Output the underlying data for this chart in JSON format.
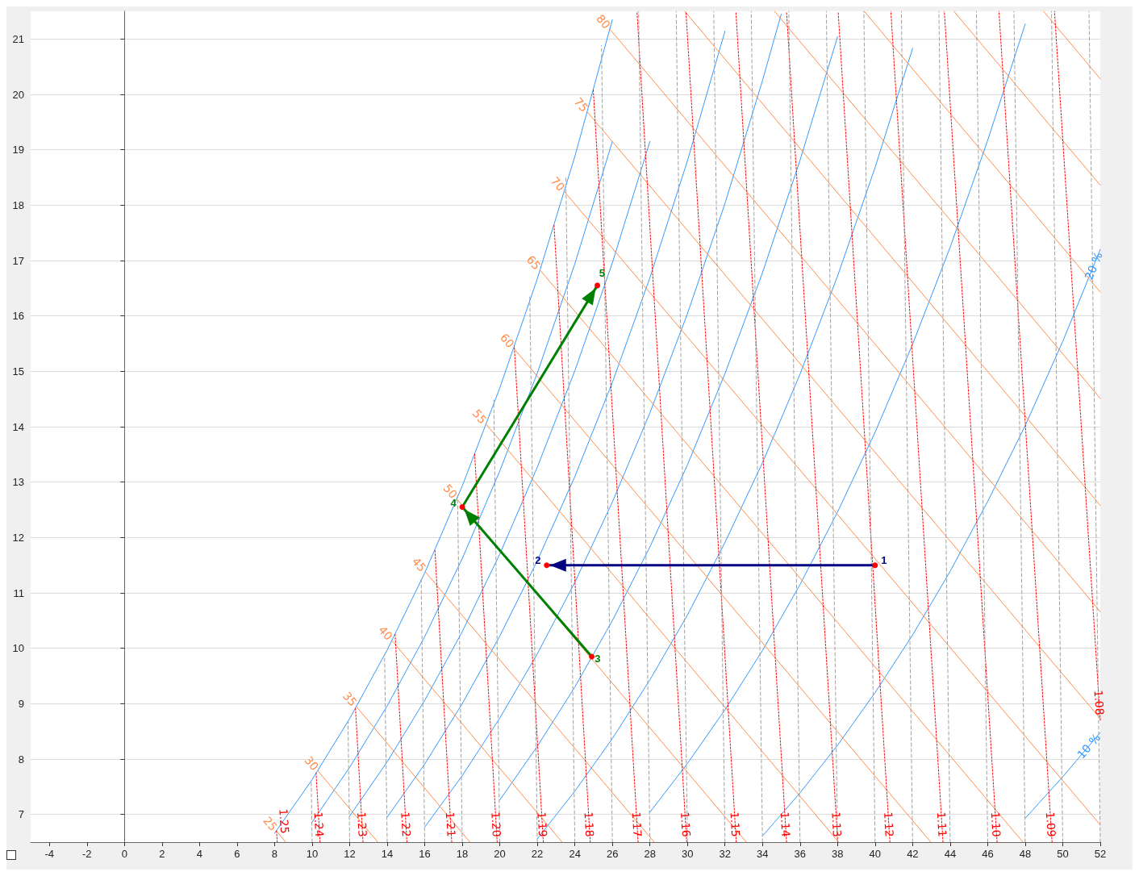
{
  "chart_data": {
    "type": "line",
    "xlim": [
      -5,
      52
    ],
    "ylim": [
      6.5,
      21.5
    ],
    "xticks": [
      -4,
      -2,
      0,
      2,
      4,
      6,
      8,
      10,
      12,
      14,
      16,
      18,
      20,
      22,
      24,
      26,
      28,
      30,
      32,
      34,
      36,
      38,
      40,
      42,
      44,
      46,
      48,
      50,
      52
    ],
    "yticks": [
      7,
      8,
      9,
      10,
      11,
      12,
      13,
      14,
      15,
      16,
      17,
      18,
      19,
      20,
      21
    ],
    "grid": "y",
    "marker": "none",
    "line_style": "solid",
    "series": [
      {
        "color": "#3399ff",
        "x": [
          26,
          24,
          22,
          20,
          18,
          16,
          14,
          12,
          10,
          8
        ],
        "values": [
          21.35,
          18.88,
          16.67,
          14.7,
          12.93,
          11.36,
          9.97,
          8.73,
          7.63,
          6.66
        ]
      },
      {
        "color": "#3399ff",
        "x": [
          26,
          24,
          22,
          20,
          18,
          16,
          14,
          12,
          10
        ],
        "values": [
          19.15,
          16.94,
          14.97,
          13.2,
          11.62,
          10.21,
          8.96,
          7.85,
          6.86
        ]
      },
      {
        "color": "#3399ff",
        "x": [
          28,
          26,
          24,
          22,
          20,
          18,
          16,
          14,
          12
        ],
        "values": [
          19.15,
          16.96,
          15.01,
          13.27,
          11.7,
          10.3,
          9.06,
          7.95,
          6.97
        ]
      },
      {
        "color": "#3399ff",
        "x": [
          32,
          30,
          28,
          26,
          24,
          22,
          20,
          18,
          16,
          14
        ],
        "values": [
          21.14,
          18.8,
          16.69,
          14.8,
          13.1,
          11.58,
          10.22,
          9.0,
          7.91,
          6.95
        ]
      },
      {
        "color": "#3399ff",
        "x": [
          35,
          34,
          32,
          30,
          28,
          26,
          24,
          22,
          20,
          18,
          16
        ],
        "values": [
          21.45,
          20.25,
          18.03,
          16.04,
          14.25,
          12.64,
          11.19,
          9.9,
          8.74,
          7.7,
          6.77
        ]
      },
      {
        "color": "#3399ff",
        "x": [
          38,
          36,
          34,
          32,
          30,
          28,
          26,
          24,
          22,
          20
        ],
        "values": [
          21.04,
          18.81,
          16.78,
          14.96,
          13.31,
          11.83,
          10.5,
          9.3,
          8.23,
          7.26
        ]
      },
      {
        "color": "#3399ff",
        "x": [
          42,
          40,
          38,
          36,
          34,
          32,
          30,
          28,
          26,
          24,
          22
        ],
        "values": [
          20.83,
          18.68,
          16.72,
          14.95,
          13.35,
          11.91,
          10.6,
          9.43,
          8.37,
          7.42,
          6.56
        ]
      },
      {
        "color": "#3399ff",
        "x": [
          48,
          46,
          44,
          42,
          40,
          38,
          36,
          34,
          32,
          30,
          28
        ],
        "values": [
          21.27,
          19.17,
          17.24,
          15.49,
          13.9,
          12.46,
          11.15,
          9.96,
          8.89,
          7.92,
          7.04
        ]
      },
      {
        "name": "20 %",
        "color": "#3399ff",
        "x": [
          52,
          50,
          48,
          46,
          44,
          42,
          40,
          38,
          36,
          34
        ],
        "values": [
          17.2,
          15.54,
          14.02,
          12.65,
          11.39,
          10.24,
          9.2,
          8.25,
          7.39,
          6.61
        ]
      },
      {
        "name": "10 %",
        "color": "#3399ff",
        "x": [
          52,
          50,
          48
        ],
        "values": [
          8.48,
          7.68,
          6.93
        ]
      },
      {
        "name": "25",
        "color": "#ff8c4a",
        "x": [
          8.1,
          8.59
        ],
        "values": [
          6.7,
          6.5
        ]
      },
      {
        "name": "30",
        "color": "#ff8c4a",
        "x": [
          10.3,
          13.5
        ],
        "values": [
          7.79,
          6.5
        ]
      },
      {
        "name": "35",
        "color": "#ff8c4a",
        "x": [
          12.35,
          18.41
        ],
        "values": [
          8.95,
          6.5
        ]
      },
      {
        "name": "40",
        "color": "#ff8c4a",
        "x": [
          14.25,
          23.32
        ],
        "values": [
          10.14,
          6.5
        ]
      },
      {
        "name": "45",
        "color": "#ff8c4a",
        "x": [
          16.03,
          28.23
        ],
        "values": [
          11.38,
          6.5
        ]
      },
      {
        "name": "50",
        "color": "#ff8c4a",
        "x": [
          17.7,
          33.14
        ],
        "values": [
          12.7,
          6.5
        ]
      },
      {
        "name": "55",
        "color": "#ff8c4a",
        "x": [
          19.26,
          38.06
        ],
        "values": [
          14.05,
          6.5
        ]
      },
      {
        "name": "60",
        "color": "#ff8c4a",
        "x": [
          20.73,
          42.97
        ],
        "values": [
          15.42,
          6.5
        ]
      },
      {
        "name": "65",
        "color": "#ff8c4a",
        "x": [
          22.14,
          47.88
        ],
        "values": [
          16.83,
          6.5
        ]
      },
      {
        "name": "70",
        "color": "#ff8c4a",
        "x": [
          23.43,
          52
        ],
        "values": [
          18.25,
          6.81
        ]
      },
      {
        "name": "75",
        "color": "#ff8c4a",
        "x": [
          24.67,
          52
        ],
        "values": [
          19.68,
          8.73
        ]
      },
      {
        "name": "80",
        "color": "#ff8c4a",
        "x": [
          25.86,
          52
        ],
        "values": [
          21.18,
          10.66
        ]
      },
      {
        "color": "#ff8c4a",
        "x": [
          29.86,
          52
        ],
        "values": [
          21.5,
          12.58
        ]
      },
      {
        "color": "#ff8c4a",
        "x": [
          34.64,
          52
        ],
        "values": [
          21.5,
          14.51
        ]
      },
      {
        "color": "#ff8c4a",
        "x": [
          39.42,
          52
        ],
        "values": [
          21.5,
          16.43
        ]
      },
      {
        "color": "#ff8c4a",
        "x": [
          44.2,
          52
        ],
        "values": [
          21.5,
          18.36
        ]
      },
      {
        "color": "#ff8c4a",
        "x": [
          48.98,
          52
        ],
        "values": [
          21.5,
          20.28
        ]
      },
      {
        "name": "1.25",
        "color": "#ff0000",
        "line_style": "dotted",
        "x": [
          8.14,
          8.1
        ],
        "values": [
          6.5,
          6.71
        ]
      },
      {
        "name": "1.24",
        "color": "#ff0000",
        "line_style": "dotted",
        "x": [
          10.42,
          10.21
        ],
        "values": [
          6.5,
          7.75
        ]
      },
      {
        "name": "1.23",
        "color": "#ff0000",
        "line_style": "dotted",
        "x": [
          12.71,
          12.31
        ],
        "values": [
          6.5,
          8.92
        ]
      },
      {
        "name": "1.22",
        "color": "#ff0000",
        "line_style": "dotted",
        "x": [
          15.05,
          14.42
        ],
        "values": [
          6.5,
          10.26
        ]
      },
      {
        "name": "1.21",
        "color": "#ff0000",
        "line_style": "dotted",
        "x": [
          17.44,
          16.54
        ],
        "values": [
          6.5,
          11.79
        ]
      },
      {
        "name": "1.20",
        "color": "#ff0000",
        "line_style": "dotted",
        "x": [
          19.86,
          18.66
        ],
        "values": [
          6.5,
          13.51
        ]
      },
      {
        "name": "1.19",
        "color": "#ff0000",
        "line_style": "dotted",
        "x": [
          22.32,
          20.77
        ],
        "values": [
          6.5,
          15.46
        ]
      },
      {
        "name": "1.18",
        "color": "#ff0000",
        "line_style": "dotted",
        "x": [
          24.82,
          22.89
        ],
        "values": [
          6.5,
          17.65
        ]
      },
      {
        "name": "1.17",
        "color": "#ff0000",
        "line_style": "dotted",
        "x": [
          27.37,
          24.98
        ],
        "values": [
          6.5,
          20.09
        ]
      },
      {
        "name": "1.16",
        "color": "#ff0000",
        "line_style": "dotted",
        "x": [
          29.96,
          27.31
        ],
        "values": [
          6.5,
          21.5
        ]
      },
      {
        "name": "1.15",
        "color": "#ff0000",
        "line_style": "dotted",
        "x": [
          32.6,
          29.92
        ],
        "values": [
          6.5,
          21.5
        ]
      },
      {
        "name": "1.14",
        "color": "#ff0000",
        "line_style": "dotted",
        "x": [
          35.28,
          32.58
        ],
        "values": [
          6.5,
          21.5
        ]
      },
      {
        "name": "1.13",
        "color": "#ff0000",
        "line_style": "dotted",
        "x": [
          38.01,
          35.28
        ],
        "values": [
          6.5,
          21.5
        ]
      },
      {
        "name": "1.12",
        "color": "#ff0000",
        "line_style": "dotted",
        "x": [
          40.79,
          38.03
        ],
        "values": [
          6.5,
          21.5
        ]
      },
      {
        "name": "1.11",
        "color": "#ff0000",
        "line_style": "dotted",
        "x": [
          43.62,
          40.84
        ],
        "values": [
          6.5,
          21.5
        ]
      },
      {
        "name": "1.10",
        "color": "#ff0000",
        "line_style": "dotted",
        "x": [
          46.5,
          43.69
        ],
        "values": [
          6.5,
          21.5
        ]
      },
      {
        "name": "1.09",
        "color": "#ff0000",
        "line_style": "dotted",
        "x": [
          49.43,
          46.6
        ],
        "values": [
          6.5,
          21.5
        ]
      },
      {
        "name": "1.08",
        "color": "#ff0000",
        "line_style": "dotted",
        "x": [
          52,
          49.56
        ],
        "values": [
          8.7,
          21.5
        ]
      },
      {
        "color": "#a0a0a0",
        "line_style": "dashed",
        "x": [
          10,
          9.95
        ],
        "values": [
          6.5,
          7.6
        ]
      },
      {
        "color": "#a0a0a0",
        "line_style": "dashed",
        "x": [
          12,
          11.91
        ],
        "values": [
          6.5,
          8.68
        ]
      },
      {
        "color": "#a0a0a0",
        "line_style": "dashed",
        "x": [
          14,
          13.86
        ],
        "values": [
          6.5,
          9.88
        ]
      },
      {
        "color": "#a0a0a0",
        "line_style": "dashed",
        "x": [
          16,
          15.81
        ],
        "values": [
          6.5,
          11.24
        ]
      },
      {
        "color": "#a0a0a0",
        "line_style": "dashed",
        "x": [
          18,
          17.75
        ],
        "values": [
          6.5,
          12.76
        ]
      },
      {
        "color": "#a0a0a0",
        "line_style": "dashed",
        "x": [
          20,
          19.68
        ],
        "values": [
          6.5,
          14.48
        ]
      },
      {
        "color": "#a0a0a0",
        "line_style": "dashed",
        "x": [
          22,
          21.6
        ],
        "values": [
          6.5,
          16.38
        ]
      },
      {
        "color": "#a0a0a0",
        "line_style": "dashed",
        "x": [
          24,
          23.52
        ],
        "values": [
          6.5,
          18.52
        ]
      },
      {
        "color": "#a0a0a0",
        "line_style": "dashed",
        "x": [
          26,
          25.42
        ],
        "values": [
          6.5,
          20.88
        ]
      },
      {
        "color": "#a0a0a0",
        "line_style": "dashed",
        "x": [
          28,
          27.4
        ],
        "values": [
          6.5,
          21.5
        ]
      },
      {
        "color": "#a0a0a0",
        "line_style": "dashed",
        "x": [
          30,
          29.4
        ],
        "values": [
          6.5,
          21.5
        ]
      },
      {
        "color": "#a0a0a0",
        "line_style": "dashed",
        "x": [
          32,
          31.4
        ],
        "values": [
          6.5,
          21.5
        ]
      },
      {
        "color": "#a0a0a0",
        "line_style": "dashed",
        "x": [
          34,
          33.4
        ],
        "values": [
          6.5,
          21.5
        ]
      },
      {
        "color": "#a0a0a0",
        "line_style": "dashed",
        "x": [
          36,
          35.4
        ],
        "values": [
          6.5,
          21.5
        ]
      },
      {
        "color": "#a0a0a0",
        "line_style": "dashed",
        "x": [
          38,
          37.4
        ],
        "values": [
          6.5,
          21.5
        ]
      },
      {
        "color": "#a0a0a0",
        "line_style": "dashed",
        "x": [
          40,
          39.4
        ],
        "values": [
          6.5,
          21.5
        ]
      },
      {
        "color": "#a0a0a0",
        "line_style": "dashed",
        "x": [
          42,
          41.4
        ],
        "values": [
          6.5,
          21.5
        ]
      },
      {
        "color": "#a0a0a0",
        "line_style": "dashed",
        "x": [
          44,
          43.4
        ],
        "values": [
          6.5,
          21.5
        ]
      },
      {
        "color": "#a0a0a0",
        "line_style": "dashed",
        "x": [
          46,
          45.4
        ],
        "values": [
          6.5,
          21.5
        ]
      },
      {
        "color": "#a0a0a0",
        "line_style": "dashed",
        "x": [
          48,
          47.4
        ],
        "values": [
          6.5,
          21.5
        ]
      },
      {
        "color": "#a0a0a0",
        "line_style": "dashed",
        "x": [
          50,
          49.4
        ],
        "values": [
          6.5,
          21.5
        ]
      },
      {
        "color": "#a0a0a0",
        "line_style": "dashed",
        "x": [
          52,
          51.4
        ],
        "values": [
          6.5,
          21.5
        ]
      },
      {
        "color": "#000080",
        "marker": "circle",
        "x": [
          40,
          22.5
        ],
        "values": [
          11.5,
          11.5
        ],
        "colors": [
          "#ff0000",
          "#ff0000"
        ]
      },
      {
        "color": "#008000",
        "marker": "circle",
        "x": [
          24.9,
          18,
          25.2
        ],
        "values": [
          9.85,
          12.55,
          16.55
        ],
        "colors": [
          "#ff0000",
          "#ff0000",
          "#ff0000"
        ]
      }
    ],
    "annotations": [
      {
        "text": "1",
        "x": 40,
        "y": 11.5
      },
      {
        "text": "2",
        "x": 22.5,
        "y": 11.5
      },
      {
        "text": "3",
        "x": 24.9,
        "y": 9.85
      },
      {
        "text": "4",
        "x": 18,
        "y": 12.55
      },
      {
        "text": "5",
        "x": 25.2,
        "y": 16.55
      }
    ]
  }
}
